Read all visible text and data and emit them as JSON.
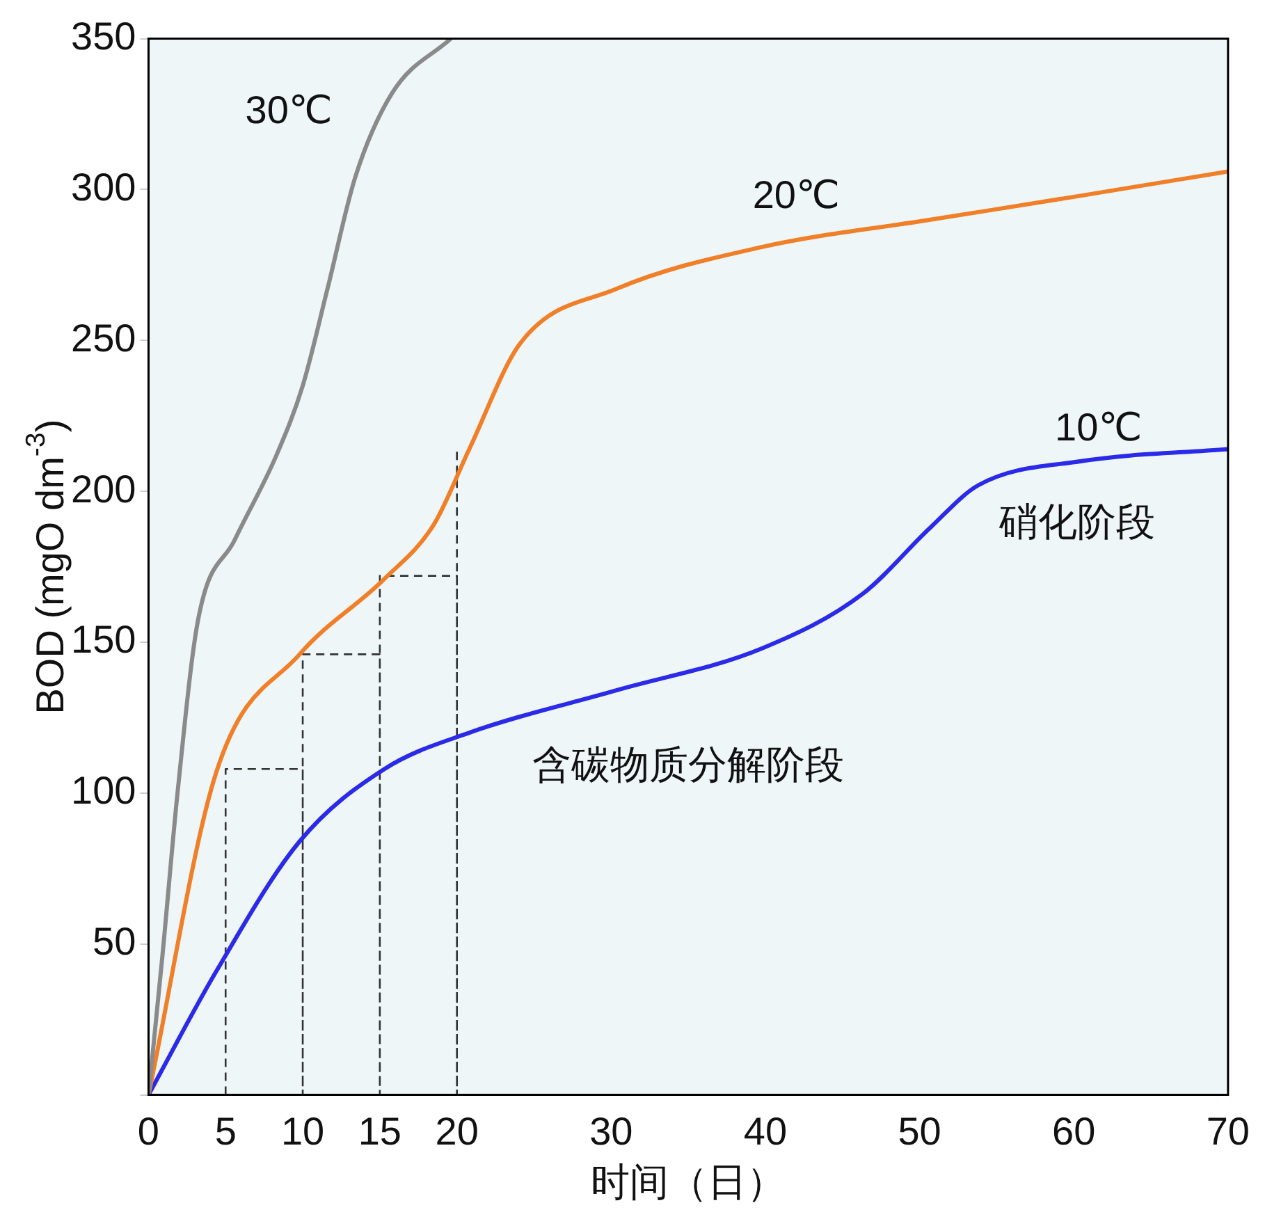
{
  "chart_data": {
    "type": "line",
    "xlabel": "时间（日）",
    "ylabel": "BOD (mgO dm$^{-3}$)",
    "xlim": [
      0,
      70
    ],
    "xticks": [
      0,
      5,
      10,
      15,
      20,
      30,
      40,
      50,
      60,
      70
    ],
    "ylim": [
      0,
      350
    ],
    "yticks": [
      {
        "value": 0,
        "label": null
      },
      50,
      100,
      150,
      200,
      250,
      300,
      350
    ],
    "grid": false,
    "legend": false,
    "marker": "none",
    "series": [
      {
        "name": "30℃",
        "color": "#8a8a8a",
        "x": [
          0,
          0.9,
          1.9,
          3.2,
          5.6,
          8.3,
          10,
          11.6,
          13.4,
          15.8,
          19.6
        ],
        "values": [
          0,
          46,
          101,
          157,
          184,
          212,
          235,
          267,
          304,
          332,
          350
        ]
      },
      {
        "name": "20℃",
        "color": "#f07f28",
        "x": [
          0,
          4.4,
          9.8,
          15.3,
          18.5,
          20.8,
          24.1,
          30.3,
          39.8,
          50.7,
          60.5,
          70
        ],
        "values": [
          0,
          107,
          146,
          171,
          189,
          214,
          249,
          267,
          281,
          290,
          298,
          306
        ]
      },
      {
        "name": "10℃",
        "color": "#2a2ae8",
        "x": [
          0,
          4.4,
          9.8,
          15.3,
          20.8,
          30.3,
          39.8,
          46.3,
          50.7,
          53.8,
          60.5,
          70
        ],
        "values": [
          0,
          41,
          84,
          108,
          120,
          134,
          148,
          166,
          188,
          202,
          210,
          214
        ]
      },
      {
        "color": "#333333",
        "line_style": "dashed",
        "x": [
          5,
          5,
          10,
          10,
          10,
          15,
          15,
          15,
          20,
          20,
          20
        ],
        "values": [
          0,
          108,
          108,
          0,
          146,
          146,
          0,
          172,
          172,
          0,
          214
        ]
      }
    ],
    "annotations": [
      "含碳物质分解阶段",
      "硝化阶段"
    ]
  }
}
